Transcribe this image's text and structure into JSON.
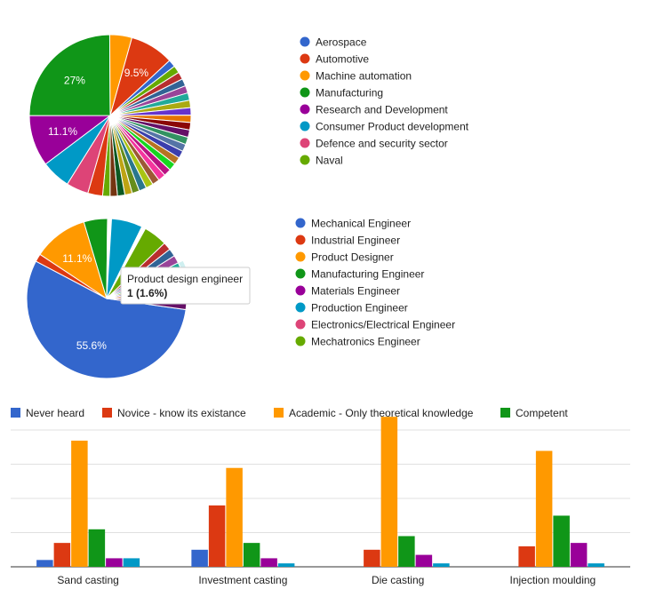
{
  "chart_data": [
    {
      "type": "pie",
      "slice_labels": [
        {
          "index": 0,
          "text": "11.1%"
        },
        {
          "index": 1,
          "text": "27%"
        },
        {
          "index": 3,
          "text": "9.5%"
        }
      ],
      "slices": [
        {
          "name": "Research and Development",
          "value": 11.1,
          "color": "#990099"
        },
        {
          "name": "Manufacturing",
          "value": 27.0,
          "color": "#109618"
        },
        {
          "name": "Machine automation",
          "value": 4.8,
          "color": "#FF9900"
        },
        {
          "name": "Automotive",
          "value": 9.5,
          "color": "#DC3912"
        },
        {
          "name": "Aerospace",
          "value": 1.6,
          "color": "#3366CC"
        },
        {
          "name": "",
          "value": 1.6,
          "color": "#66AA00"
        },
        {
          "name": "",
          "value": 1.6,
          "color": "#B82E2E"
        },
        {
          "name": "",
          "value": 1.6,
          "color": "#316395"
        },
        {
          "name": "",
          "value": 1.6,
          "color": "#994499"
        },
        {
          "name": "",
          "value": 1.6,
          "color": "#22AA99"
        },
        {
          "name": "",
          "value": 1.6,
          "color": "#AAAA11"
        },
        {
          "name": "",
          "value": 1.6,
          "color": "#6633CC"
        },
        {
          "name": "",
          "value": 1.6,
          "color": "#E67300"
        },
        {
          "name": "",
          "value": 1.6,
          "color": "#8B0707"
        },
        {
          "name": "",
          "value": 1.6,
          "color": "#651067"
        },
        {
          "name": "",
          "value": 1.6,
          "color": "#329262"
        },
        {
          "name": "",
          "value": 1.6,
          "color": "#5574A6"
        },
        {
          "name": "",
          "value": 1.6,
          "color": "#3B3EAC"
        },
        {
          "name": "",
          "value": 1.6,
          "color": "#B77322"
        },
        {
          "name": "",
          "value": 1.6,
          "color": "#16D620"
        },
        {
          "name": "",
          "value": 1.6,
          "color": "#B91383"
        },
        {
          "name": "",
          "value": 1.6,
          "color": "#F4359E"
        },
        {
          "name": "",
          "value": 1.6,
          "color": "#9C5935"
        },
        {
          "name": "",
          "value": 1.6,
          "color": "#A9C413"
        },
        {
          "name": "",
          "value": 1.6,
          "color": "#2A778D"
        },
        {
          "name": "",
          "value": 1.6,
          "color": "#668D1C"
        },
        {
          "name": "",
          "value": 1.6,
          "color": "#BEA413"
        },
        {
          "name": "",
          "value": 1.6,
          "color": "#0C5922"
        },
        {
          "name": "",
          "value": 1.6,
          "color": "#743411"
        },
        {
          "name": "Naval",
          "value": 1.6,
          "color": "#66AA00"
        },
        {
          "name": "",
          "value": 3.2,
          "color": "#DC3912"
        },
        {
          "name": "Defence and security sector",
          "value": 4.8,
          "color": "#DD4477"
        },
        {
          "name": "Consumer Product development",
          "value": 6.3,
          "color": "#0099C6"
        }
      ],
      "legend": [
        {
          "label": "Aerospace",
          "color": "#3366CC"
        },
        {
          "label": "Automotive",
          "color": "#DC3912"
        },
        {
          "label": "Machine automation",
          "color": "#FF9900"
        },
        {
          "label": "Manufacturing",
          "color": "#109618"
        },
        {
          "label": "Research and Development",
          "color": "#990099"
        },
        {
          "label": "Consumer Product development",
          "color": "#0099C6"
        },
        {
          "label": "Defence and security sector",
          "color": "#DD4477"
        },
        {
          "label": "Naval",
          "color": "#66AA00"
        }
      ],
      "legend_position": "right"
    },
    {
      "type": "pie",
      "slice_labels": [
        {
          "index": 0,
          "text": "55.6%"
        },
        {
          "index": 2,
          "text": "11.1%"
        }
      ],
      "slices": [
        {
          "name": "Mechanical Engineer",
          "value": 55.6,
          "color": "#3366CC"
        },
        {
          "name": "Industrial Engineer",
          "value": 1.6,
          "color": "#DC3912"
        },
        {
          "name": "Product Designer",
          "value": 11.1,
          "color": "#FF9900"
        },
        {
          "name": "Manufacturing Engineer",
          "value": 4.8,
          "color": "#109618"
        },
        {
          "name": "",
          "value": 0.8,
          "color": "#ffffff"
        },
        {
          "name": "Production Engineer",
          "value": 6.3,
          "color": "#0099C6"
        },
        {
          "name": "",
          "value": 0.8,
          "color": "#ffffff"
        },
        {
          "name": "Mechatronics Engineer",
          "value": 4.8,
          "color": "#66AA00"
        },
        {
          "name": "",
          "value": 1.6,
          "color": "#B82E2E"
        },
        {
          "name": "",
          "value": 1.6,
          "color": "#316395"
        },
        {
          "name": "",
          "value": 1.6,
          "color": "#994499"
        },
        {
          "name": "",
          "value": 1.6,
          "color": "#22AA99"
        },
        {
          "name": "Product design engineer",
          "value": 1.6,
          "color": "#AAAA11"
        },
        {
          "name": "",
          "value": 1.6,
          "color": "#6633CC"
        },
        {
          "name": "",
          "value": 1.6,
          "color": "#E67300"
        },
        {
          "name": "",
          "value": 1.6,
          "color": "#8B0707"
        },
        {
          "name": "",
          "value": 1.6,
          "color": "#651067"
        }
      ],
      "highlight_index": 11,
      "legend": [
        {
          "label": "Mechanical Engineer",
          "color": "#3366CC"
        },
        {
          "label": "Industrial Engineer",
          "color": "#DC3912"
        },
        {
          "label": "Product Designer",
          "color": "#FF9900"
        },
        {
          "label": "Manufacturing Engineer",
          "color": "#109618"
        },
        {
          "label": "Materials Engineer",
          "color": "#990099"
        },
        {
          "label": "Production Engineer",
          "color": "#0099C6"
        },
        {
          "label": "Electronics/Electrical Engineer",
          "color": "#DD4477"
        },
        {
          "label": "Mechatronics Engineer",
          "color": "#66AA00"
        }
      ],
      "legend_position": "right",
      "tooltip": {
        "title": "Product design engineer",
        "value": "1 (1.6%)"
      }
    },
    {
      "type": "bar",
      "categories": [
        "Sand casting",
        "Investment casting",
        "Die casting",
        "Injection moulding"
      ],
      "ylim": [
        0,
        43
      ],
      "grid": true,
      "legend_position": "top",
      "series": [
        {
          "name": "Never heard",
          "color": "#3366CC",
          "values": [
            2,
            5,
            0,
            0
          ]
        },
        {
          "name": "Novice - know its existance",
          "color": "#DC3912",
          "values": [
            7,
            18,
            5,
            6
          ]
        },
        {
          "name": "Academic - Only theoretical knowledge",
          "color": "#FF9900",
          "values": [
            37,
            29,
            44,
            34
          ]
        },
        {
          "name": "Competent",
          "color": "#109618",
          "values": [
            11,
            7,
            9,
            15
          ]
        },
        {
          "name": "",
          "color": "#990099",
          "values": [
            2.5,
            2.5,
            3.5,
            7
          ]
        },
        {
          "name": "",
          "color": "#0099C6",
          "values": [
            2.5,
            1,
            1,
            1
          ]
        }
      ]
    }
  ]
}
